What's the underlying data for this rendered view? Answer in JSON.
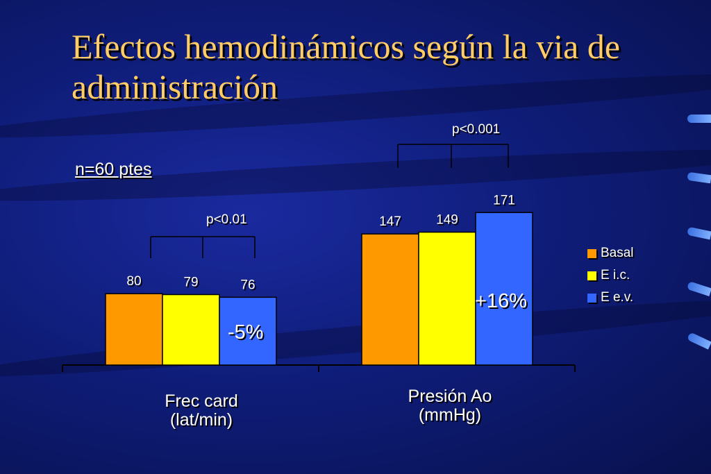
{
  "title": "Efectos hemodinámicos según la via de administración",
  "note": "n=60 ptes",
  "colors": {
    "basal": "#ff9900",
    "eic": "#ffff00",
    "eev": "#3366ff",
    "title": "#ffcc66"
  },
  "chart_data": {
    "type": "bar",
    "categories": [
      "Frec card (lat/min)",
      "Presión Ao (mmHg)"
    ],
    "category_lines": [
      [
        "Frec card",
        "(lat/min)"
      ],
      [
        "Presión Ao",
        "(mmHg)"
      ]
    ],
    "series": [
      {
        "name": "Basal",
        "values": [
          80,
          147
        ]
      },
      {
        "name": "E i.c.",
        "values": [
          79,
          149
        ]
      },
      {
        "name": "E e.v.",
        "values": [
          76,
          171
        ]
      }
    ],
    "significance": [
      "p<0.01",
      "p<0.001"
    ],
    "change_labels": [
      "-5%",
      "+16%"
    ],
    "legend_position": "right"
  }
}
